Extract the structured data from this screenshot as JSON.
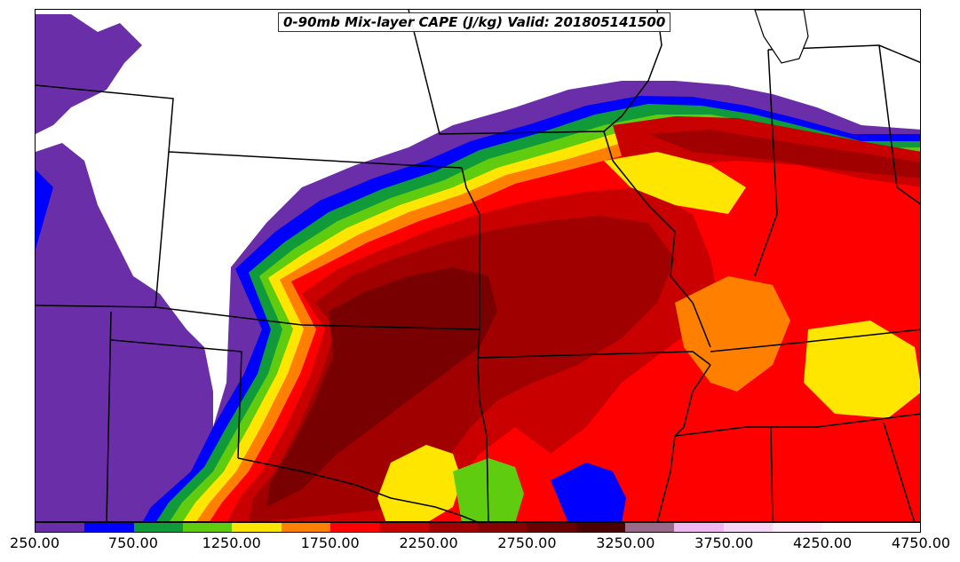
{
  "title": "0-90mb Mix-layer CAPE (J/kg) Valid: 201805141500",
  "colorbar": {
    "colors": [
      "#6a2fa8",
      "#0000ff",
      "#109a3a",
      "#5fcc10",
      "#ffe600",
      "#ff7f00",
      "#ff0000",
      "#c80000",
      "#a00000",
      "#880000",
      "#6a0000",
      "#4a0000",
      "#9a6a8a",
      "#f0b8f0",
      "#f8d8f8",
      "#fceefc",
      "#ffffff",
      "#ffffff"
    ],
    "tick_values": [
      "250.00",
      "750.00",
      "1250.00",
      "1750.00",
      "2250.00",
      "2750.00",
      "3250.00",
      "3750.00",
      "4250.00",
      "4750.00"
    ]
  },
  "map_layers": {
    "background": "#ffffff",
    "purple": "#6a2fa8",
    "blue": "#0000ff",
    "darkgreen": "#109a3a",
    "lightgreen": "#5fcc10",
    "yellow": "#ffe600",
    "orange": "#ff7f00",
    "red": "#ff0000",
    "darkred": "#c80000",
    "maroon": "#a00000",
    "deepmaroon": "#780000",
    "lakes_color": "#ffffff",
    "border_color": "#000000"
  }
}
